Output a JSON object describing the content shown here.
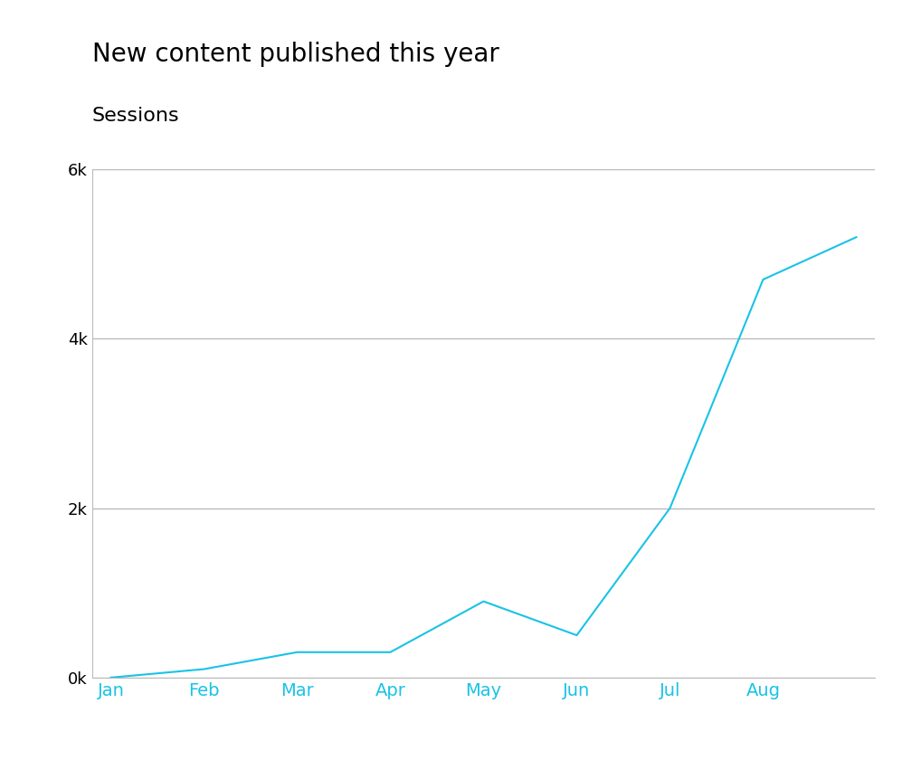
{
  "chart_data": {
    "type": "line",
    "title": "New content published this year",
    "y_label": "Sessions",
    "categories": [
      "Jan",
      "Feb",
      "Mar",
      "Apr",
      "May",
      "Jun",
      "Jul",
      "Aug",
      null
    ],
    "values": [
      0,
      100,
      300,
      300,
      900,
      500,
      2000,
      4700,
      5200
    ],
    "color": "#19c3e6",
    "ylim": [
      0,
      6000
    ],
    "yticks": [
      {
        "value": 0,
        "label": "0k"
      },
      {
        "value": 2000,
        "label": "2k"
      },
      {
        "value": 4000,
        "label": "4k"
      },
      {
        "value": 6000,
        "label": "6k"
      }
    ],
    "grid": true
  }
}
